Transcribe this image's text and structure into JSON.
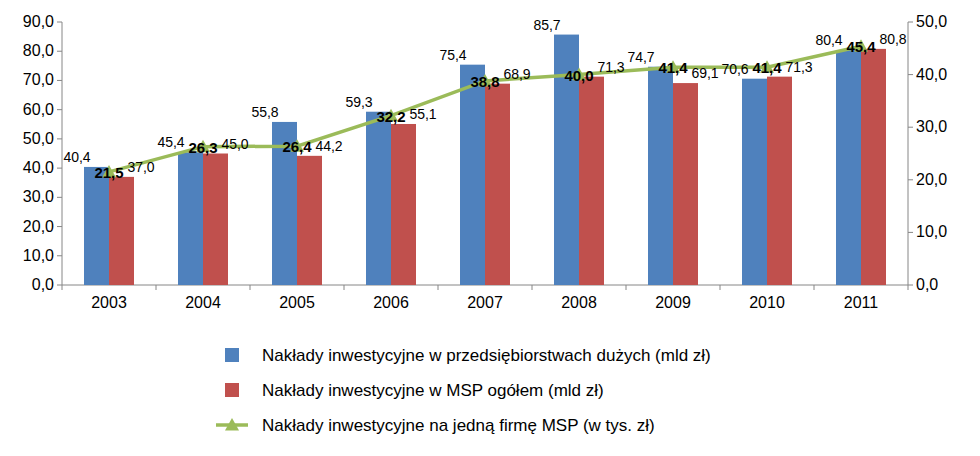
{
  "chart_data": {
    "type": "bar",
    "categories": [
      "2003",
      "2004",
      "2005",
      "2006",
      "2007",
      "2008",
      "2009",
      "2010",
      "2011"
    ],
    "ylim": [
      0,
      90
    ],
    "yticks": [
      {
        "value": 0,
        "label": "0,0"
      },
      {
        "value": 10,
        "label": "10,0"
      },
      {
        "value": 20,
        "label": "20,0"
      },
      {
        "value": 30,
        "label": "30,0"
      },
      {
        "value": 40,
        "label": "40,0"
      },
      {
        "value": 50,
        "label": "50,0"
      },
      {
        "value": 60,
        "label": "60,0"
      },
      {
        "value": 70,
        "label": "70,0"
      },
      {
        "value": 80,
        "label": "80,0"
      },
      {
        "value": 90,
        "label": "90,0"
      }
    ],
    "y2lim": [
      0,
      50
    ],
    "y2ticks": [
      {
        "value": 0,
        "label": "0,0"
      },
      {
        "value": 10,
        "label": "10,0"
      },
      {
        "value": 20,
        "label": "20,0"
      },
      {
        "value": 30,
        "label": "30,0"
      },
      {
        "value": 40,
        "label": "40,0"
      },
      {
        "value": 50,
        "label": "50,0"
      }
    ],
    "grid": false,
    "legend": "bottom",
    "data_labels": true,
    "series": [
      {
        "name": "Nakłady inwestycyjne w przedsiębiorstwach dużych (mld zł)",
        "type": "bar",
        "color": "#4f81bd",
        "values": [
          40.4,
          45.4,
          55.8,
          59.3,
          75.4,
          85.7,
          74.7,
          70.6,
          80.4
        ],
        "value_labels": [
          "40,4",
          "45,4",
          "55,8",
          "59,3",
          "75,4",
          "85,7",
          "74,7",
          "70,6",
          "80,4"
        ]
      },
      {
        "name": "Nakłady inwestycyjne w MSP ogółem (mld zł)",
        "type": "bar",
        "color": "#c0504d",
        "values": [
          37.0,
          45.0,
          44.2,
          55.1,
          68.9,
          71.3,
          69.1,
          71.3,
          80.8
        ],
        "value_labels": [
          "37,0",
          "45,0",
          "44,2",
          "55,1",
          "68,9",
          "71,3",
          "69,1",
          "71,3",
          "80,8"
        ]
      },
      {
        "name": "Nakłady inwestycyjne na jedną firmę MSP (w tys. zł)",
        "type": "line",
        "axis": "y2",
        "color": "#9bbb59",
        "marker": "triangle",
        "line_style": "solid",
        "values": [
          21.5,
          26.3,
          26.4,
          32.2,
          38.8,
          40.0,
          41.4,
          41.4,
          45.4
        ],
        "value_labels": [
          "21,5",
          "26,3",
          "26,4",
          "32,2",
          "38,8",
          "40,0",
          "41,4",
          "41,4",
          "45,4"
        ]
      }
    ]
  }
}
